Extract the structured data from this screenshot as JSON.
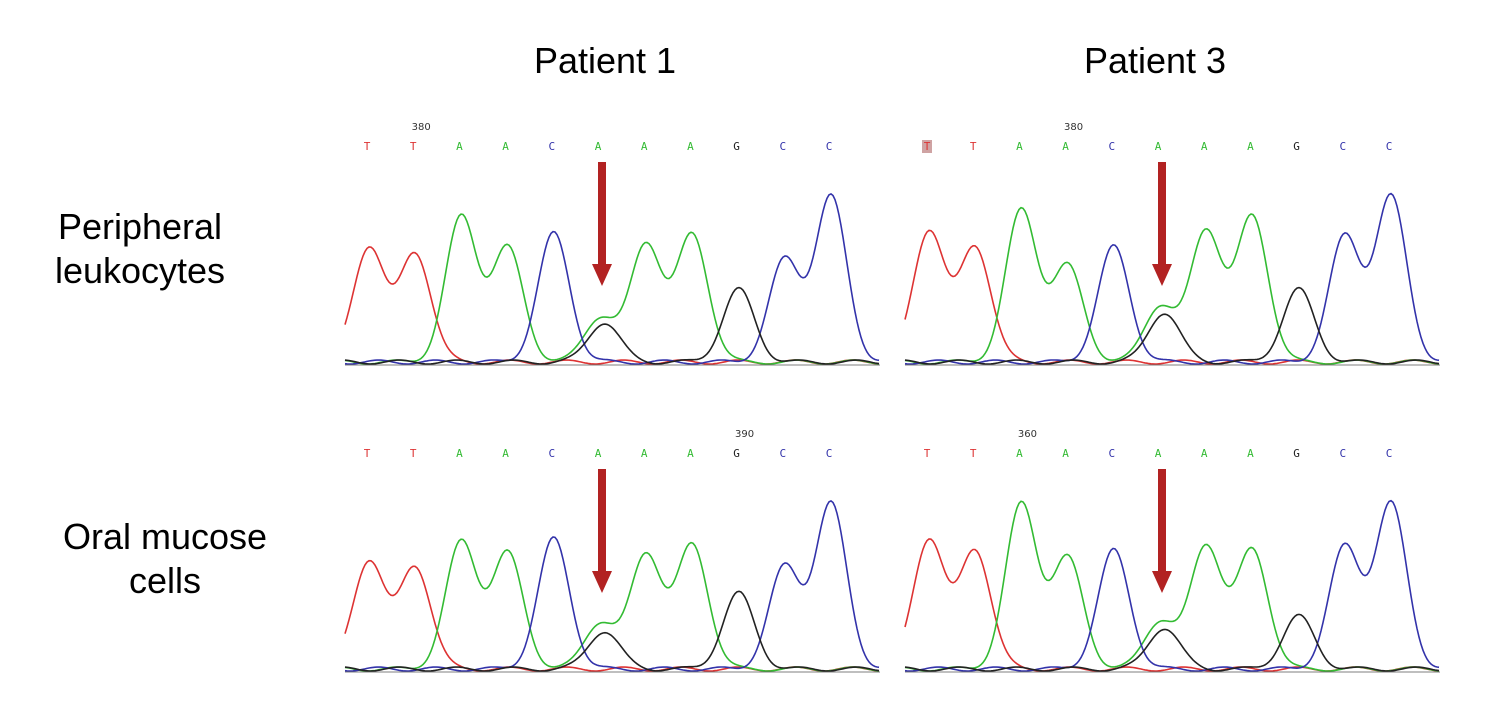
{
  "columns": [
    {
      "title": "Patient 1"
    },
    {
      "title": "Patient 3"
    }
  ],
  "rows": [
    {
      "label_line1": "Peripheral",
      "label_line2": "leukocytes"
    },
    {
      "label_line1": "Oral mucose",
      "label_line2": "cells"
    }
  ],
  "base_colors": {
    "A": "#33bb33",
    "C": "#3333aa",
    "G": "#222222",
    "T": "#dd3333"
  },
  "arrow_color": "#b22222",
  "panels": [
    {
      "id": "p1-leuko",
      "position_marker": {
        "label": "380",
        "base_index": 1
      },
      "bases": [
        "T",
        "T",
        "A",
        "A",
        "C",
        "A",
        "A",
        "A",
        "G",
        "C",
        "C"
      ],
      "highlight_base_index": null,
      "arrow_base_index": 5,
      "peaks": [
        {
          "base": "T",
          "height": 0.7
        },
        {
          "base": "T",
          "height": 0.66
        },
        {
          "base": "A",
          "height": 0.88
        },
        {
          "base": "A",
          "height": 0.69
        },
        {
          "base": "C",
          "height": 0.78
        },
        {
          "base": "A",
          "height": 0.27
        },
        {
          "base": "A",
          "height": 0.72
        },
        {
          "base": "A",
          "height": 0.77
        },
        {
          "base": "G",
          "height": 0.44
        },
        {
          "base": "C",
          "height": 0.62
        },
        {
          "base": "C",
          "height": 1.0
        }
      ],
      "secondary_peaks": [
        {
          "base_index": 5,
          "base": "G",
          "height": 0.24
        }
      ]
    },
    {
      "id": "p3-leuko",
      "position_marker": {
        "label": "380",
        "base_index": 3
      },
      "bases": [
        "T",
        "T",
        "A",
        "A",
        "C",
        "A",
        "A",
        "A",
        "G",
        "C",
        "C"
      ],
      "highlight_base_index": 0,
      "arrow_base_index": 5,
      "peaks": [
        {
          "base": "T",
          "height": 0.8
        },
        {
          "base": "T",
          "height": 0.7
        },
        {
          "base": "A",
          "height": 0.92
        },
        {
          "base": "A",
          "height": 0.58
        },
        {
          "base": "C",
          "height": 0.7
        },
        {
          "base": "A",
          "height": 0.34
        },
        {
          "base": "A",
          "height": 0.8
        },
        {
          "base": "A",
          "height": 0.88
        },
        {
          "base": "G",
          "height": 0.44
        },
        {
          "base": "C",
          "height": 0.76
        },
        {
          "base": "C",
          "height": 1.0
        }
      ],
      "secondary_peaks": [
        {
          "base_index": 5,
          "base": "G",
          "height": 0.3
        }
      ]
    },
    {
      "id": "p1-oral",
      "position_marker": {
        "label": "390",
        "base_index": 8
      },
      "bases": [
        "T",
        "T",
        "A",
        "A",
        "C",
        "A",
        "A",
        "A",
        "G",
        "C",
        "C"
      ],
      "highlight_base_index": null,
      "arrow_base_index": 5,
      "peaks": [
        {
          "base": "T",
          "height": 0.66
        },
        {
          "base": "T",
          "height": 0.62
        },
        {
          "base": "A",
          "height": 0.77
        },
        {
          "base": "A",
          "height": 0.7
        },
        {
          "base": "C",
          "height": 0.79
        },
        {
          "base": "A",
          "height": 0.28
        },
        {
          "base": "A",
          "height": 0.7
        },
        {
          "base": "A",
          "height": 0.75
        },
        {
          "base": "G",
          "height": 0.46
        },
        {
          "base": "C",
          "height": 0.62
        },
        {
          "base": "C",
          "height": 1.0
        }
      ],
      "secondary_peaks": [
        {
          "base_index": 5,
          "base": "G",
          "height": 0.23
        }
      ]
    },
    {
      "id": "p3-oral",
      "position_marker": {
        "label": "360",
        "base_index": 2
      },
      "bases": [
        "T",
        "T",
        "A",
        "A",
        "C",
        "A",
        "A",
        "A",
        "G",
        "C",
        "C"
      ],
      "highlight_base_index": null,
      "arrow_base_index": 5,
      "peaks": [
        {
          "base": "T",
          "height": 0.79
        },
        {
          "base": "T",
          "height": 0.72
        },
        {
          "base": "A",
          "height": 1.0
        },
        {
          "base": "A",
          "height": 0.67
        },
        {
          "base": "C",
          "height": 0.72
        },
        {
          "base": "A",
          "height": 0.29
        },
        {
          "base": "A",
          "height": 0.75
        },
        {
          "base": "A",
          "height": 0.72
        },
        {
          "base": "G",
          "height": 0.32
        },
        {
          "base": "C",
          "height": 0.74
        },
        {
          "base": "C",
          "height": 1.0
        }
      ],
      "secondary_peaks": [
        {
          "base_index": 5,
          "base": "G",
          "height": 0.25
        }
      ]
    }
  ]
}
